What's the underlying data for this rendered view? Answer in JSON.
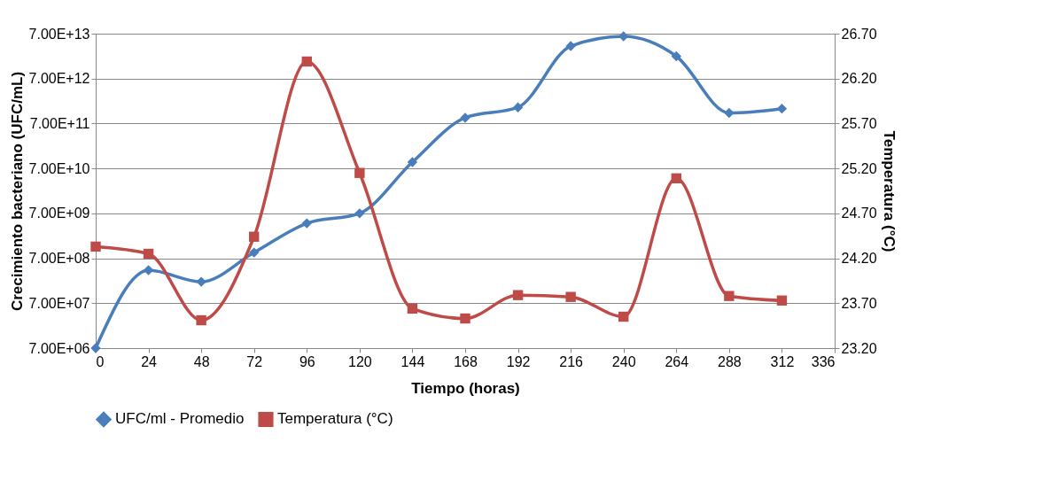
{
  "chart_data": {
    "type": "line",
    "xlabel": "Tiempo (horas)",
    "ylabel": "Crecimiento bacteriano (UFC/mL)",
    "y2label": "Temperatura (°C)",
    "x": [
      0,
      24,
      48,
      72,
      96,
      120,
      144,
      168,
      192,
      216,
      240,
      264,
      288,
      312
    ],
    "xlim": [
      0,
      336
    ],
    "xticks": [
      0,
      24,
      48,
      72,
      96,
      120,
      144,
      168,
      192,
      216,
      240,
      264,
      288,
      312,
      336
    ],
    "log": "y",
    "ylim": [
      7000000,
      70000000000000
    ],
    "yticks": [
      {
        "value": 7000000,
        "label": "7.00E+06"
      },
      {
        "value": 70000000,
        "label": "7.00E+07"
      },
      {
        "value": 700000000,
        "label": "7.00E+08"
      },
      {
        "value": 7000000000,
        "label": "7.00E+09"
      },
      {
        "value": 70000000000,
        "label": "7.00E+10"
      },
      {
        "value": 700000000000,
        "label": "7.00E+11"
      },
      {
        "value": 7000000000000,
        "label": "7.00E+12"
      },
      {
        "value": 70000000000000,
        "label": "7.00E+13"
      }
    ],
    "y2lim": [
      23.2,
      26.7
    ],
    "y2ticks": [
      {
        "value": 23.2,
        "label": "23.20"
      },
      {
        "value": 23.7,
        "label": "23.70"
      },
      {
        "value": 24.2,
        "label": "24.20"
      },
      {
        "value": 24.7,
        "label": "24.70"
      },
      {
        "value": 25.2,
        "label": "25.20"
      },
      {
        "value": 25.7,
        "label": "25.70"
      },
      {
        "value": 26.2,
        "label": "26.20"
      },
      {
        "value": 26.7,
        "label": "26.70"
      }
    ],
    "grid": "y",
    "legend": "bottom",
    "series": [
      {
        "name": "UFC/ml - Promedio",
        "color": "#4a7ebb",
        "marker": "diamond",
        "values": [
          7000000,
          380000000,
          210000000,
          940000000,
          4200000000,
          7000000000,
          97000000000,
          940000000000,
          1600000000000,
          37000000000000,
          61000000000000,
          22000000000000,
          1200000000000,
          1500000000000
        ]
      },
      {
        "name": "Temperatura (°C)",
        "color": "#be4b48",
        "marker": "square",
        "axis": "y2",
        "values": [
          24.33,
          24.25,
          23.51,
          24.44,
          26.39,
          25.15,
          23.64,
          23.53,
          23.79,
          23.77,
          23.55,
          25.09,
          23.78,
          23.73
        ]
      }
    ]
  }
}
